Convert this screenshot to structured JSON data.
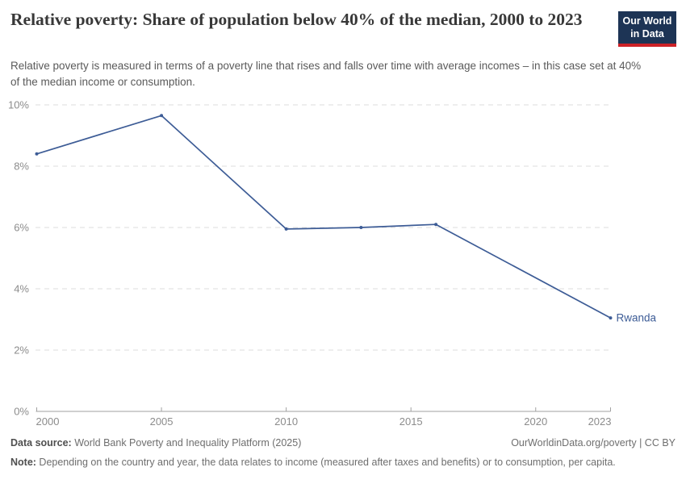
{
  "header": {
    "title": "Relative poverty: Share of population below 40% of the median, 2000 to 2023",
    "subtitle": "Relative poverty is measured in terms of a poverty line that rises and falls over time with average incomes – in this case set at 40% of the median income or consumption.",
    "logo": {
      "line1": "Our World",
      "line2": "in Data"
    }
  },
  "chart_data": {
    "type": "line",
    "title": "Relative poverty: Share of population below 40% of the median, 2000 to 2023",
    "xlabel": "",
    "ylabel": "",
    "x": [
      2000,
      2005,
      2010,
      2013,
      2016,
      2023
    ],
    "series": [
      {
        "name": "Rwanda",
        "values": [
          8.4,
          9.65,
          5.95,
          6.0,
          6.1,
          3.05
        ],
        "color": "#3d5c96"
      }
    ],
    "xlim": [
      2000,
      2023
    ],
    "ylim": [
      0,
      10
    ],
    "x_ticks": [
      2000,
      2005,
      2010,
      2015,
      2020,
      2023
    ],
    "x_tick_labels": [
      "2000",
      "2005",
      "2010",
      "2015",
      "2020",
      "2023"
    ],
    "y_ticks": [
      0,
      2,
      4,
      6,
      8,
      10
    ],
    "y_tick_labels": [
      "0%",
      "2%",
      "4%",
      "6%",
      "8%",
      "10%"
    ],
    "grid": "horizontal dashed",
    "legend_position": "label at end of line"
  },
  "footer": {
    "datasource_label": "Data source:",
    "datasource_text": " World Bank Poverty and Inequality Platform (2025)",
    "link_text": "OurWorldinData.org/poverty | CC BY",
    "note_label": "Note:",
    "note_text": " Depending on the country and year, the data relates to income (measured after taxes and benefits) or to consumption, per capita."
  },
  "colors": {
    "line": "#3d5c96",
    "logo_navy": "#1d3455",
    "logo_red": "#cc2127",
    "grid": "#dcdcdc",
    "axis": "#a1a1a1",
    "axis_text": "#8c8c8c"
  }
}
